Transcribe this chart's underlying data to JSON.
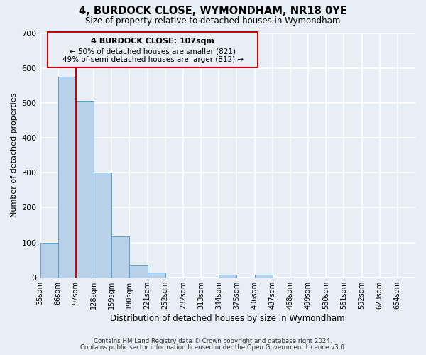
{
  "title": "4, BURDOCK CLOSE, WYMONDHAM, NR18 0YE",
  "subtitle": "Size of property relative to detached houses in Wymondham",
  "xlabel": "Distribution of detached houses by size in Wymondham",
  "ylabel": "Number of detached properties",
  "bin_labels": [
    "35sqm",
    "66sqm",
    "97sqm",
    "128sqm",
    "159sqm",
    "190sqm",
    "221sqm",
    "252sqm",
    "282sqm",
    "313sqm",
    "344sqm",
    "375sqm",
    "406sqm",
    "437sqm",
    "468sqm",
    "499sqm",
    "530sqm",
    "561sqm",
    "592sqm",
    "623sqm",
    "654sqm"
  ],
  "bar_values": [
    100,
    575,
    505,
    300,
    118,
    37,
    14,
    0,
    0,
    0,
    8,
    0,
    8,
    0,
    0,
    0,
    0,
    0,
    0,
    0,
    0
  ],
  "bar_color": "#b8d0e8",
  "bar_edge_color": "#5a9fd4",
  "ylim": [
    0,
    700
  ],
  "yticks": [
    0,
    100,
    200,
    300,
    400,
    500,
    600,
    700
  ],
  "vline_x": 2.0,
  "annotation_title": "4 BURDOCK CLOSE: 107sqm",
  "annotation_line1": "← 50% of detached houses are smaller (821)",
  "annotation_line2": "49% of semi-detached houses are larger (812) →",
  "annotation_color": "#cc0000",
  "background_color": "#e8eef5",
  "grid_color": "#ffffff",
  "footer_line1": "Contains HM Land Registry data © Crown copyright and database right 2024.",
  "footer_line2": "Contains public sector information licensed under the Open Government Licence v3.0."
}
